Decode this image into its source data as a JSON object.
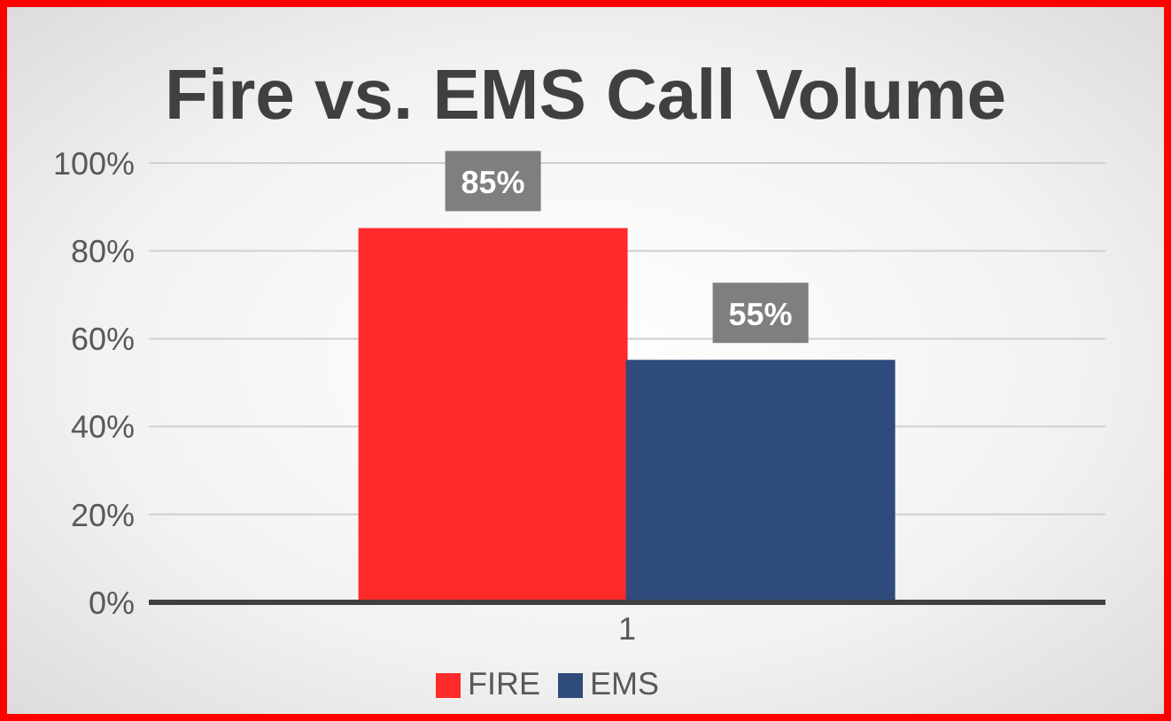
{
  "chart_data": {
    "type": "bar",
    "title": "Fire vs. EMS Call Volume",
    "categories": [
      "1"
    ],
    "series": [
      {
        "name": "FIRE",
        "color": "#ff2b2b",
        "values": [
          85
        ],
        "value_labels": [
          "85%"
        ]
      },
      {
        "name": "EMS",
        "color": "#2f4b7c",
        "values": [
          55
        ],
        "value_labels": [
          "55%"
        ]
      }
    ],
    "ylim": [
      0,
      100
    ],
    "yticks": [
      {
        "value": 0,
        "label": "0%"
      },
      {
        "value": 20,
        "label": "20%"
      },
      {
        "value": 40,
        "label": "40%"
      },
      {
        "value": 60,
        "label": "60%"
      },
      {
        "value": 80,
        "label": "80%"
      },
      {
        "value": 100,
        "label": "100%"
      }
    ],
    "grid": "y",
    "legend": "bottom"
  }
}
